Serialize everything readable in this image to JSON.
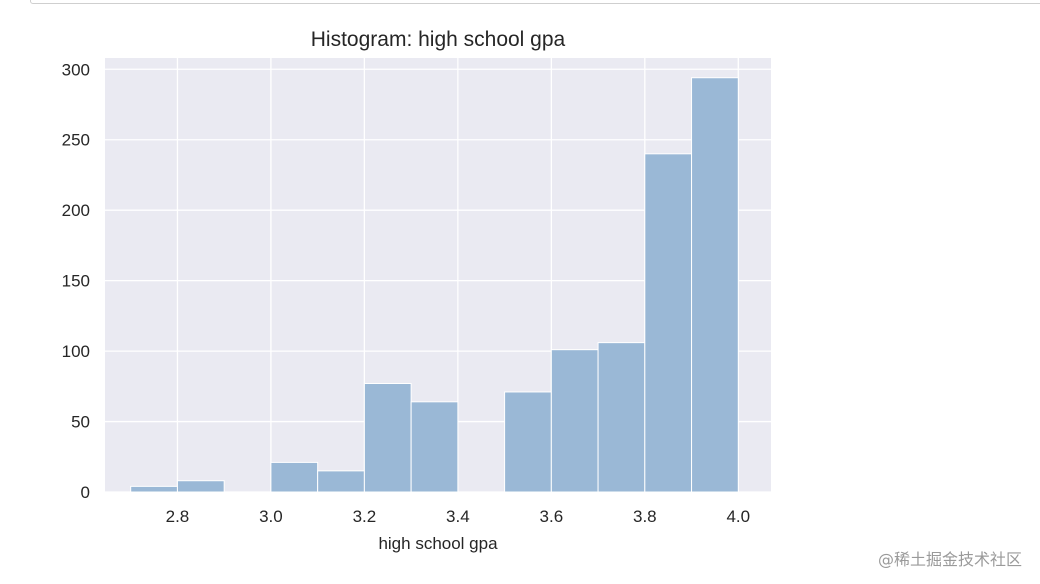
{
  "chart_data": {
    "type": "bar",
    "title": "Histogram: high school gpa",
    "xlabel": "high school gpa",
    "ylabel": "",
    "xlim": [
      2.645,
      4.07
    ],
    "ylim": [
      0,
      308
    ],
    "xticks": [
      2.8,
      3.0,
      3.2,
      3.4,
      3.6,
      3.8,
      4.0
    ],
    "xtick_labels": [
      "2.8",
      "3.0",
      "3.2",
      "3.4",
      "3.6",
      "3.8",
      "4.0"
    ],
    "yticks": [
      0,
      50,
      100,
      150,
      200,
      250,
      300
    ],
    "ytick_labels": [
      "0",
      "50",
      "100",
      "150",
      "200",
      "250",
      "300"
    ],
    "grid": true,
    "bar_color": "#9ab8d6",
    "plot_background": "#eaeaf2",
    "bins": [
      {
        "x0": 2.7,
        "x1": 2.8,
        "count": 4
      },
      {
        "x0": 2.8,
        "x1": 2.9,
        "count": 8
      },
      {
        "x0": 2.9,
        "x1": 3.0,
        "count": 0
      },
      {
        "x0": 3.0,
        "x1": 3.1,
        "count": 21
      },
      {
        "x0": 3.1,
        "x1": 3.2,
        "count": 15
      },
      {
        "x0": 3.2,
        "x1": 3.3,
        "count": 77
      },
      {
        "x0": 3.3,
        "x1": 3.4,
        "count": 64
      },
      {
        "x0": 3.4,
        "x1": 3.5,
        "count": 0
      },
      {
        "x0": 3.5,
        "x1": 3.6,
        "count": 71
      },
      {
        "x0": 3.6,
        "x1": 3.7,
        "count": 101
      },
      {
        "x0": 3.7,
        "x1": 3.8,
        "count": 106
      },
      {
        "x0": 3.8,
        "x1": 3.9,
        "count": 240
      },
      {
        "x0": 3.9,
        "x1": 4.0,
        "count": 294
      }
    ]
  },
  "watermark": "@稀土掘金技术社区"
}
